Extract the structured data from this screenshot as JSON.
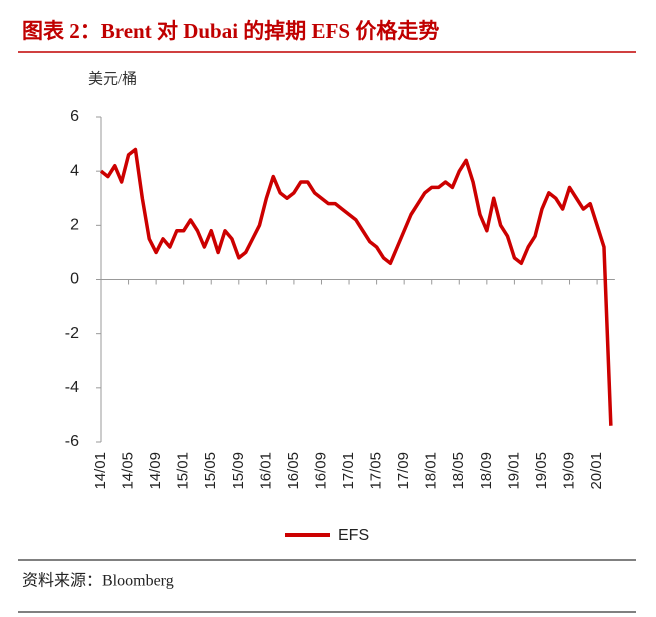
{
  "chart_data": {
    "type": "line",
    "title": "图表 2：Brent 对 Dubai 的掉期 EFS 价格走势",
    "unit": "美元/桶",
    "source": "资料来源：Bloomberg",
    "categories": [
      "14/01",
      null,
      null,
      null,
      "14/05",
      null,
      null,
      null,
      "14/09",
      null,
      null,
      null,
      "15/01",
      null,
      null,
      null,
      "15/05",
      null,
      null,
      null,
      "15/09",
      null,
      null,
      null,
      "16/01",
      null,
      null,
      null,
      "16/05",
      null,
      null,
      null,
      "16/09",
      null,
      null,
      null,
      "17/01",
      null,
      null,
      null,
      "17/05",
      null,
      null,
      null,
      "17/09",
      null,
      null,
      null,
      "18/01",
      null,
      null,
      null,
      "18/05",
      null,
      null,
      null,
      "18/09",
      null,
      null,
      null,
      "19/01",
      null,
      null,
      null,
      "19/05",
      null,
      null,
      null,
      "19/09",
      null,
      null,
      null,
      "20/01",
      null,
      null
    ],
    "series": [
      {
        "name": "EFS",
        "color": "#cc0000",
        "values": [
          4.0,
          3.8,
          4.2,
          3.6,
          4.6,
          4.8,
          3.0,
          1.5,
          1.0,
          1.5,
          1.2,
          1.8,
          1.8,
          2.2,
          1.8,
          1.2,
          1.8,
          1.0,
          1.8,
          1.5,
          0.8,
          1.0,
          1.5,
          2.0,
          3.0,
          3.8,
          3.2,
          3.0,
          3.2,
          3.6,
          3.6,
          3.2,
          3.0,
          2.8,
          2.8,
          2.6,
          2.4,
          2.2,
          1.8,
          1.4,
          1.2,
          0.8,
          0.6,
          1.2,
          1.8,
          2.4,
          2.8,
          3.2,
          3.4,
          3.4,
          3.6,
          3.4,
          4.0,
          4.4,
          3.6,
          2.4,
          1.8,
          3.0,
          2.0,
          1.6,
          0.8,
          0.6,
          1.2,
          1.6,
          2.6,
          3.2,
          3.0,
          2.6,
          3.4,
          3.0,
          2.6,
          2.8,
          2.0,
          1.2,
          -5.4
        ]
      }
    ],
    "ylim": [
      -6,
      6
    ],
    "yticks": [
      -6,
      -4,
      -2,
      0,
      2,
      4,
      6
    ]
  }
}
